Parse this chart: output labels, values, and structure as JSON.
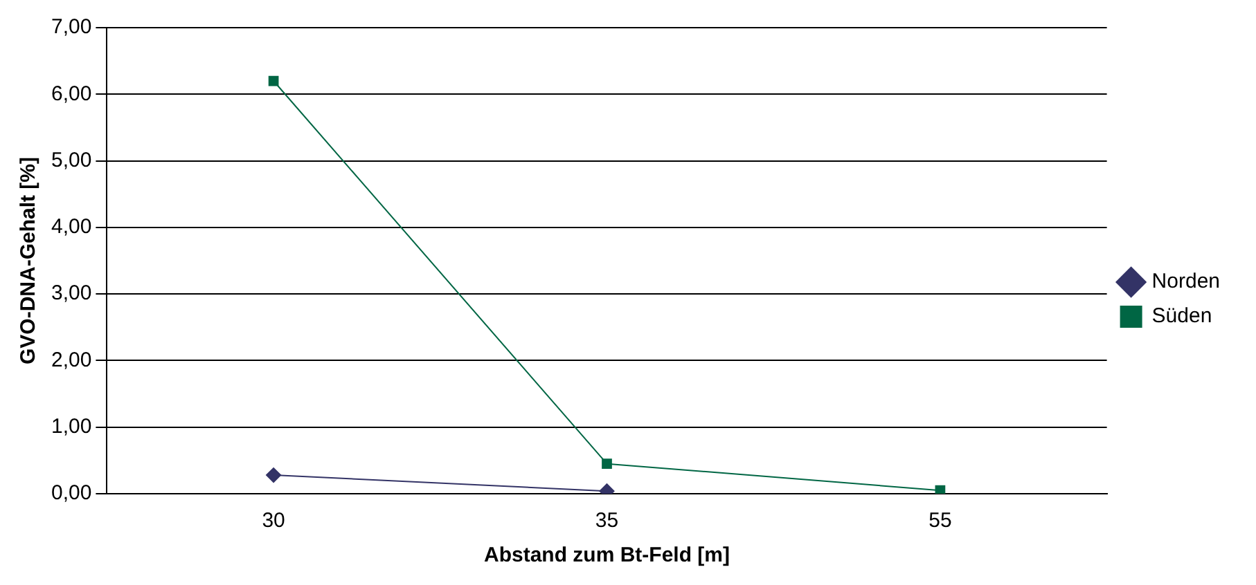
{
  "chart_data": {
    "type": "line",
    "xlabel": "Abstand zum Bt-Feld [m]",
    "ylabel": "GVO-DNA-Gehalt [%]",
    "categories": [
      "30",
      "35",
      "55"
    ],
    "series": [
      {
        "name": "Norden",
        "color": "#333366",
        "marker": "diamond",
        "values": [
          0.28,
          0.04,
          null
        ]
      },
      {
        "name": "Süden",
        "color": "#006644",
        "marker": "square",
        "values": [
          6.2,
          0.45,
          0.05
        ]
      }
    ],
    "ylim": [
      0,
      7
    ],
    "yticks": [
      {
        "value": 0,
        "label": "0,00"
      },
      {
        "value": 1,
        "label": "1,00"
      },
      {
        "value": 2,
        "label": "2,00"
      },
      {
        "value": 3,
        "label": "3,00"
      },
      {
        "value": 4,
        "label": "4,00"
      },
      {
        "value": 5,
        "label": "5,00"
      },
      {
        "value": 6,
        "label": "6,00"
      },
      {
        "value": 7,
        "label": "7,00"
      }
    ],
    "grid": "y",
    "legend": "right",
    "line_style": "solid"
  }
}
